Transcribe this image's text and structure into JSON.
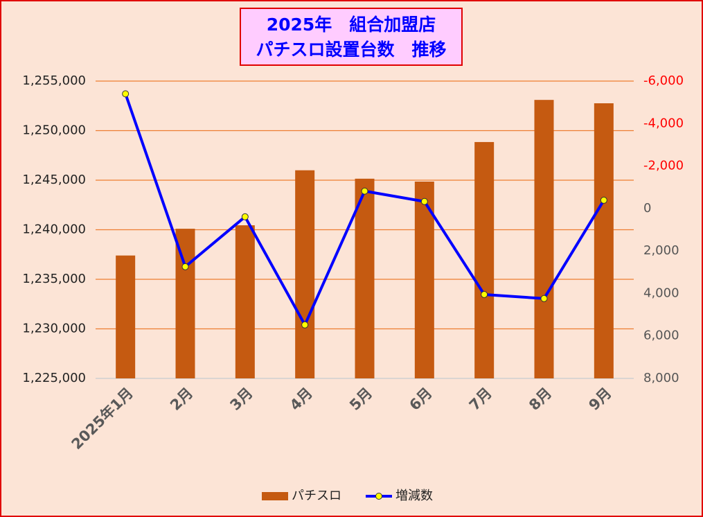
{
  "chart_data": {
    "type": "bar-line",
    "title_lines": [
      "2025年　組合加盟店",
      "パチスロ設置台数　推移"
    ],
    "categories": [
      "2025年1月",
      "2月",
      "3月",
      "4月",
      "5月",
      "6月",
      "7月",
      "8月",
      "9月"
    ],
    "series": [
      {
        "name": "パチスロ",
        "type": "bar",
        "color": "#c55a11",
        "axis": "y",
        "values": [
          1237400,
          1240100,
          1240450,
          1246000,
          1245150,
          1244860,
          1248850,
          1253100,
          1252760
        ]
      },
      {
        "name": "増減数",
        "type": "line",
        "color": "#0000ff",
        "marker_color": "#ffff00",
        "axis": "y2",
        "values": [
          -5400,
          2740,
          390,
          5480,
          -820,
          -330,
          4050,
          4240,
          -390
        ]
      }
    ],
    "ylim": [
      1225000,
      1255000
    ],
    "yticks": [
      {
        "value": 1225000,
        "label": "1,225,000"
      },
      {
        "value": 1230000,
        "label": "1,230,000"
      },
      {
        "value": 1235000,
        "label": "1,235,000"
      },
      {
        "value": 1240000,
        "label": "1,240,000"
      },
      {
        "value": 1245000,
        "label": "1,245,000"
      },
      {
        "value": 1250000,
        "label": "1,250,000"
      },
      {
        "value": 1255000,
        "label": "1,255,000"
      }
    ],
    "y2lim": [
      8000,
      -6000
    ],
    "y2ticks": [
      {
        "value": -6000,
        "label": "-6,000"
      },
      {
        "value": -4000,
        "label": "-4,000"
      },
      {
        "value": -2000,
        "label": "-2,000"
      },
      0,
      {
        "value": 2000,
        "label": "2,000"
      },
      {
        "value": 4000,
        "label": "4,000"
      },
      {
        "value": 6000,
        "label": "6,000"
      },
      {
        "value": 8000,
        "label": "8,000"
      }
    ],
    "y2tick_negative_color": "#ff0000",
    "grid": true,
    "grid_color": "#ed7d31",
    "legend": "bottom"
  }
}
